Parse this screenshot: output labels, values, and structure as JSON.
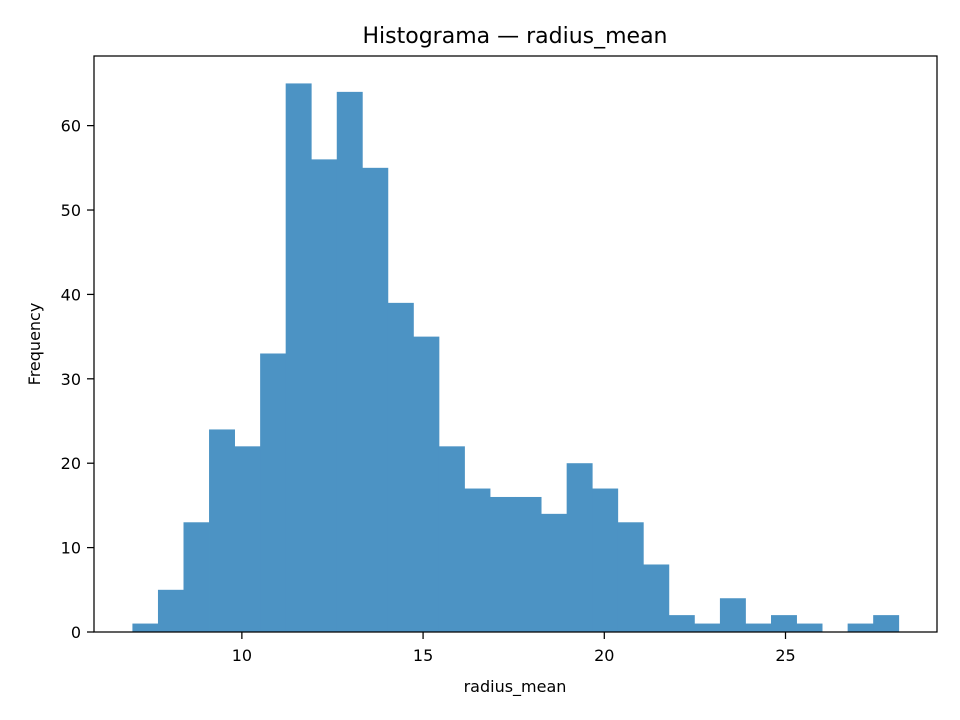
{
  "chart_data": {
    "type": "bar",
    "title": "Histograma — radius_mean",
    "xlabel": "radius_mean",
    "ylabel": "Frequency",
    "bin_start": 6.98,
    "bin_width": 0.7048,
    "values": [
      1,
      5,
      13,
      24,
      22,
      33,
      65,
      56,
      64,
      55,
      39,
      35,
      22,
      17,
      16,
      16,
      14,
      20,
      17,
      13,
      8,
      2,
      1,
      4,
      1,
      2,
      1,
      0,
      1,
      2
    ],
    "xlim": [
      5.92,
      29.18
    ],
    "ylim": [
      0,
      68.25
    ],
    "xticks": [
      10,
      15,
      20,
      25
    ],
    "yticks": [
      0,
      10,
      20,
      30,
      40,
      50,
      60
    ],
    "bar_color": "#4c93c4",
    "grid": false,
    "legend": "none"
  }
}
